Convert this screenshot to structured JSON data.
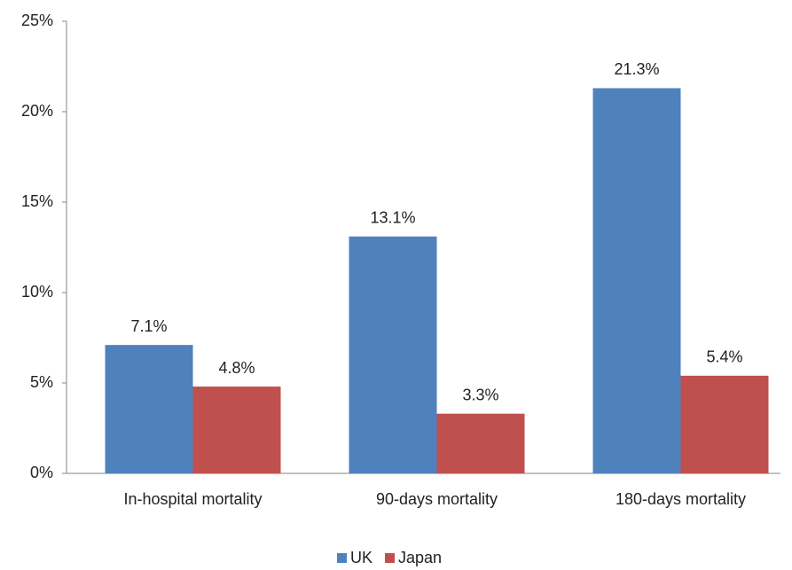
{
  "chart_data": {
    "type": "bar",
    "categories": [
      "In-hospital mortality",
      "90-days mortality",
      "180-days mortality"
    ],
    "series": [
      {
        "name": "UK",
        "color": "#4f81bd",
        "values": [
          7.1,
          13.1,
          21.3
        ],
        "value_labels": [
          "7.1%",
          "13.1%",
          "21.3%"
        ]
      },
      {
        "name": "Japan",
        "color": "#c0504d",
        "values": [
          4.8,
          3.3,
          5.4
        ],
        "value_labels": [
          "4.8%",
          "3.3%",
          "5.4%"
        ]
      }
    ],
    "ylim": [
      0,
      25
    ],
    "yticks": [
      {
        "value": 0,
        "label": "0%"
      },
      {
        "value": 5,
        "label": "5%"
      },
      {
        "value": 10,
        "label": "10%"
      },
      {
        "value": 15,
        "label": "15%"
      },
      {
        "value": 20,
        "label": "20%"
      },
      {
        "value": 25,
        "label": "25%"
      }
    ],
    "grid": false,
    "legend": "bottom"
  }
}
